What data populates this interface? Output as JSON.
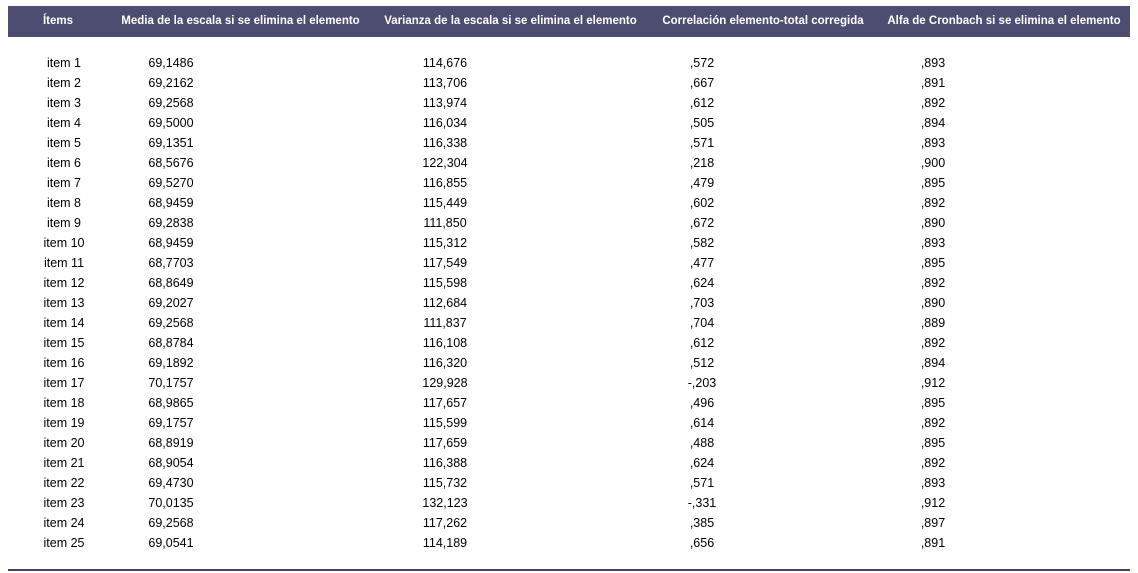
{
  "chart_data": {
    "type": "table",
    "columns": [
      "Ítems",
      "Media de la escala si se elimina el elemento",
      "Varianza de la escala si se elimina el elemento",
      "Correlación elemento-total corregida",
      "Alfa de Cronbach si se elimina el elemento"
    ],
    "rows": [
      [
        "item 1",
        "69,1486",
        "114,676",
        ",572",
        ",893"
      ],
      [
        "item 2",
        "69,2162",
        "113,706",
        ",667",
        ",891"
      ],
      [
        "item 3",
        "69,2568",
        "113,974",
        ",612",
        ",892"
      ],
      [
        "item 4",
        "69,5000",
        "116,034",
        ",505",
        ",894"
      ],
      [
        "item 5",
        "69,1351",
        "116,338",
        ",571",
        ",893"
      ],
      [
        "item 6",
        "68,5676",
        "122,304",
        ",218",
        ",900"
      ],
      [
        "item 7",
        "69,5270",
        "116,855",
        ",479",
        ",895"
      ],
      [
        "item 8",
        "68,9459",
        "115,449",
        ",602",
        ",892"
      ],
      [
        "item 9",
        "69,2838",
        "111,850",
        ",672",
        ",890"
      ],
      [
        "item 10",
        "68,9459",
        "115,312",
        ",582",
        ",893"
      ],
      [
        "item 11",
        "68,7703",
        "117,549",
        ",477",
        ",895"
      ],
      [
        "item 12",
        "68,8649",
        "115,598",
        ",624",
        ",892"
      ],
      [
        "item 13",
        "69,2027",
        "112,684",
        ",703",
        ",890"
      ],
      [
        "item 14",
        "69,2568",
        "111,837",
        ",704",
        ",889"
      ],
      [
        "item 15",
        "68,8784",
        "116,108",
        ",612",
        ",892"
      ],
      [
        "item 16",
        "69,1892",
        "116,320",
        ",512",
        ",894"
      ],
      [
        "item 17",
        "70,1757",
        "129,928",
        "-,203",
        ",912"
      ],
      [
        "item 18",
        "68,9865",
        "117,657",
        ",496",
        ",895"
      ],
      [
        "item 19",
        "69,1757",
        "115,599",
        ",614",
        ",892"
      ],
      [
        "item 20",
        "68,8919",
        "117,659",
        ",488",
        ",895"
      ],
      [
        "item 21",
        "68,9054",
        "116,388",
        ",624",
        ",892"
      ],
      [
        "item 22",
        "69,4730",
        "115,732",
        ",571",
        ",893"
      ],
      [
        "item 23",
        "70,0135",
        "132,123",
        "-,331",
        ",912"
      ],
      [
        "item 24",
        "69,2568",
        "117,262",
        ",385",
        ",897"
      ],
      [
        "item 25",
        "69,0541",
        "114,189",
        ",656",
        ",891"
      ]
    ],
    "title": "",
    "layout": {
      "header_position": "top",
      "grid": false,
      "decimal_separator": ","
    }
  },
  "colors": {
    "header_bg": "#4d4d72",
    "header_text": "#ffffff",
    "body_text": "#000000",
    "rule": "#42426a"
  }
}
